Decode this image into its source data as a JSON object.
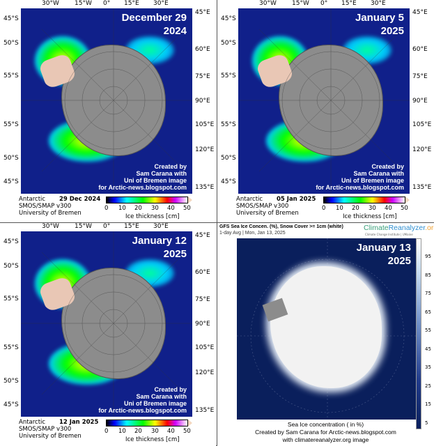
{
  "lat_labels": [
    "45°S",
    "50°S",
    "55°S",
    "55°S",
    "50°S",
    "45°S"
  ],
  "lon_top": [
    "30°W",
    "15°W",
    "0°",
    "15°E",
    "30°E"
  ],
  "lon_right": [
    "45°E",
    "60°E",
    "75°E",
    "90°E",
    "105°E",
    "120°E",
    "135°E"
  ],
  "colorbar": {
    "ticks": [
      "0",
      "10",
      "20",
      "30",
      "40",
      "50"
    ],
    "label": "Ice thickness [cm]"
  },
  "source": {
    "region": "Antarctic",
    "product": "SMOS/SMAP v300",
    "institution": "University of Bremen"
  },
  "credit": [
    "Created by",
    "Sam Carana with",
    "Uni of Bremen image",
    "for Arctic-news.blogspot.com"
  ],
  "panels": [
    {
      "title1": "December 29",
      "title2": "2024",
      "date": "29 Dec 2024"
    },
    {
      "title1": "January 5",
      "title2": "2025",
      "date": "05 Jan 2025"
    },
    {
      "title1": "January 12",
      "title2": "2025",
      "date": "12 Jan 2025"
    }
  ],
  "gfs": {
    "header": "GFS Sea Ice Concen. (%), Snow Cover >= 1cm (white)",
    "subheader": "1-day Avg | Mon, Jan 13, 2025",
    "logo_a": "Climate",
    "logo_b": "Reanalyzer",
    ".org": ".org",
    "logo_c": ".org",
    "logo_sub": "Climate Change Institute | UMaine",
    "title1": "January 13",
    "title2": "2025",
    "legend": [
      "95",
      "85",
      "75",
      "65",
      "55",
      "45",
      "35",
      "25",
      "15",
      "5"
    ],
    "caption": [
      "Sea Ice concentration ( in %)",
      "Created by Sam Carana for Arctic-news.blogspot.com",
      "with climatereanalyzer.org image"
    ]
  }
}
